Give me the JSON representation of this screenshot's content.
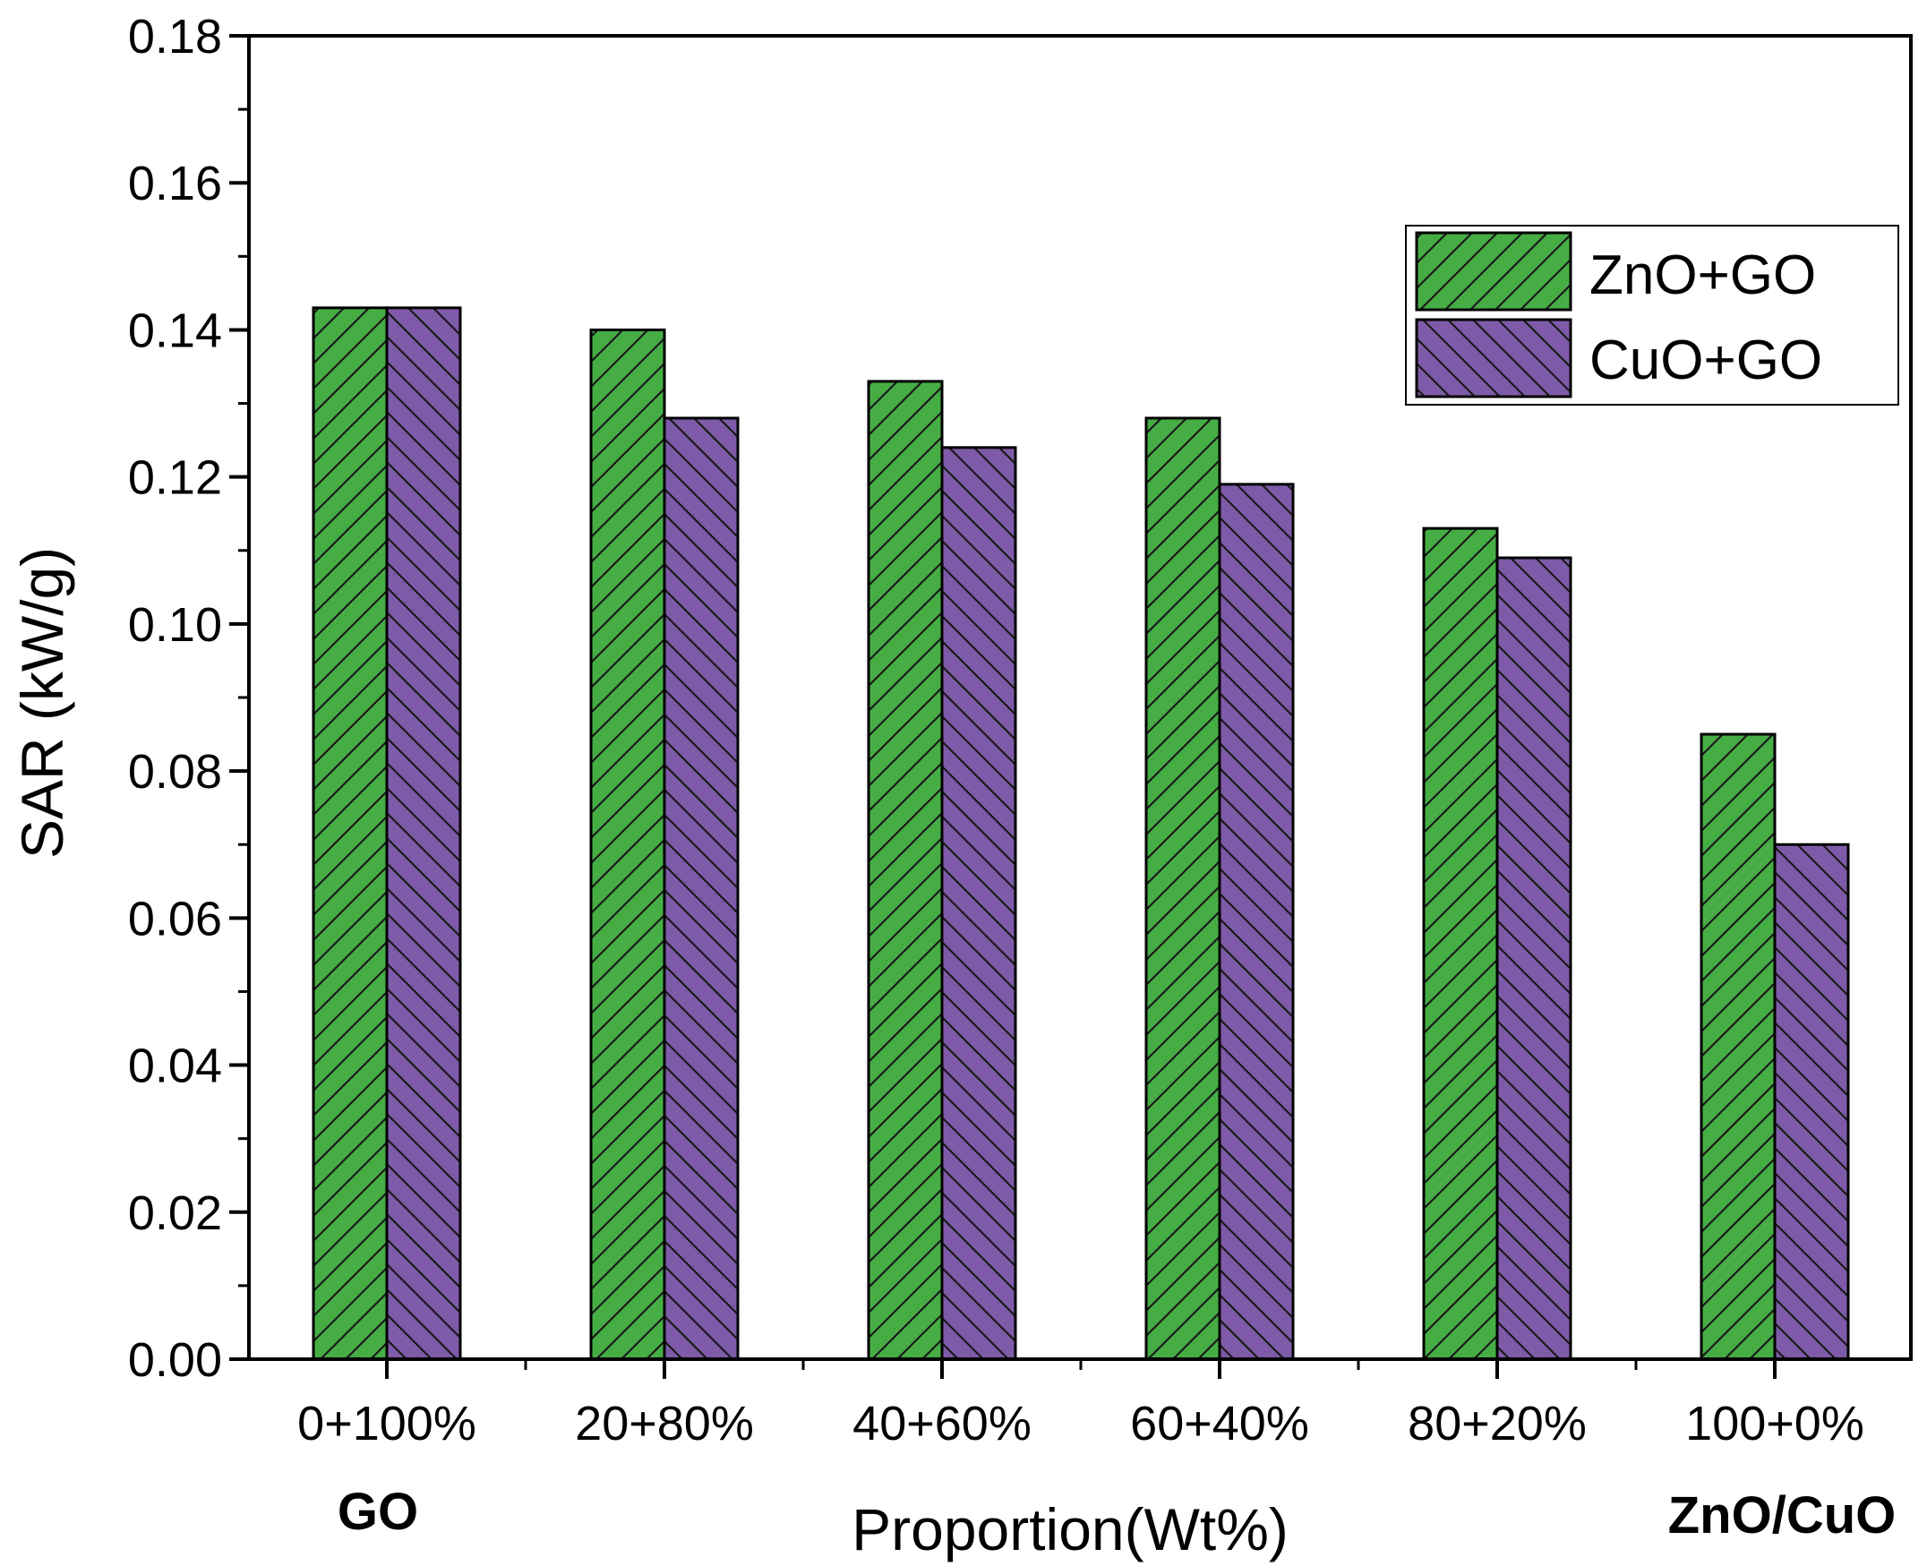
{
  "chart_data": {
    "type": "bar",
    "title": "",
    "xlabel": "Proportion(Wt%)",
    "ylabel": "SAR (kW/g)",
    "ylim": [
      0,
      0.18
    ],
    "yticks": [
      "0.00",
      "0.02",
      "0.04",
      "0.06",
      "0.08",
      "0.10",
      "0.12",
      "0.14",
      "0.16",
      "0.18"
    ],
    "categories": [
      "0+100%",
      "20+80%",
      "40+60%",
      "60+40%",
      "80+20%",
      "100+0%"
    ],
    "series": [
      {
        "name": "ZnO+GO",
        "color": "#46ad45",
        "hatch": "forward",
        "values": [
          0.143,
          0.14,
          0.133,
          0.128,
          0.113,
          0.085
        ]
      },
      {
        "name": "CuO+GO",
        "color": "#7e5ba8",
        "hatch": "backward",
        "values": [
          0.143,
          0.128,
          0.124,
          0.119,
          0.109,
          0.07
        ]
      }
    ],
    "annotations": {
      "left_note": "GO",
      "right_note": "ZnO/CuO"
    },
    "legend_position": "top-right",
    "grid": false
  }
}
